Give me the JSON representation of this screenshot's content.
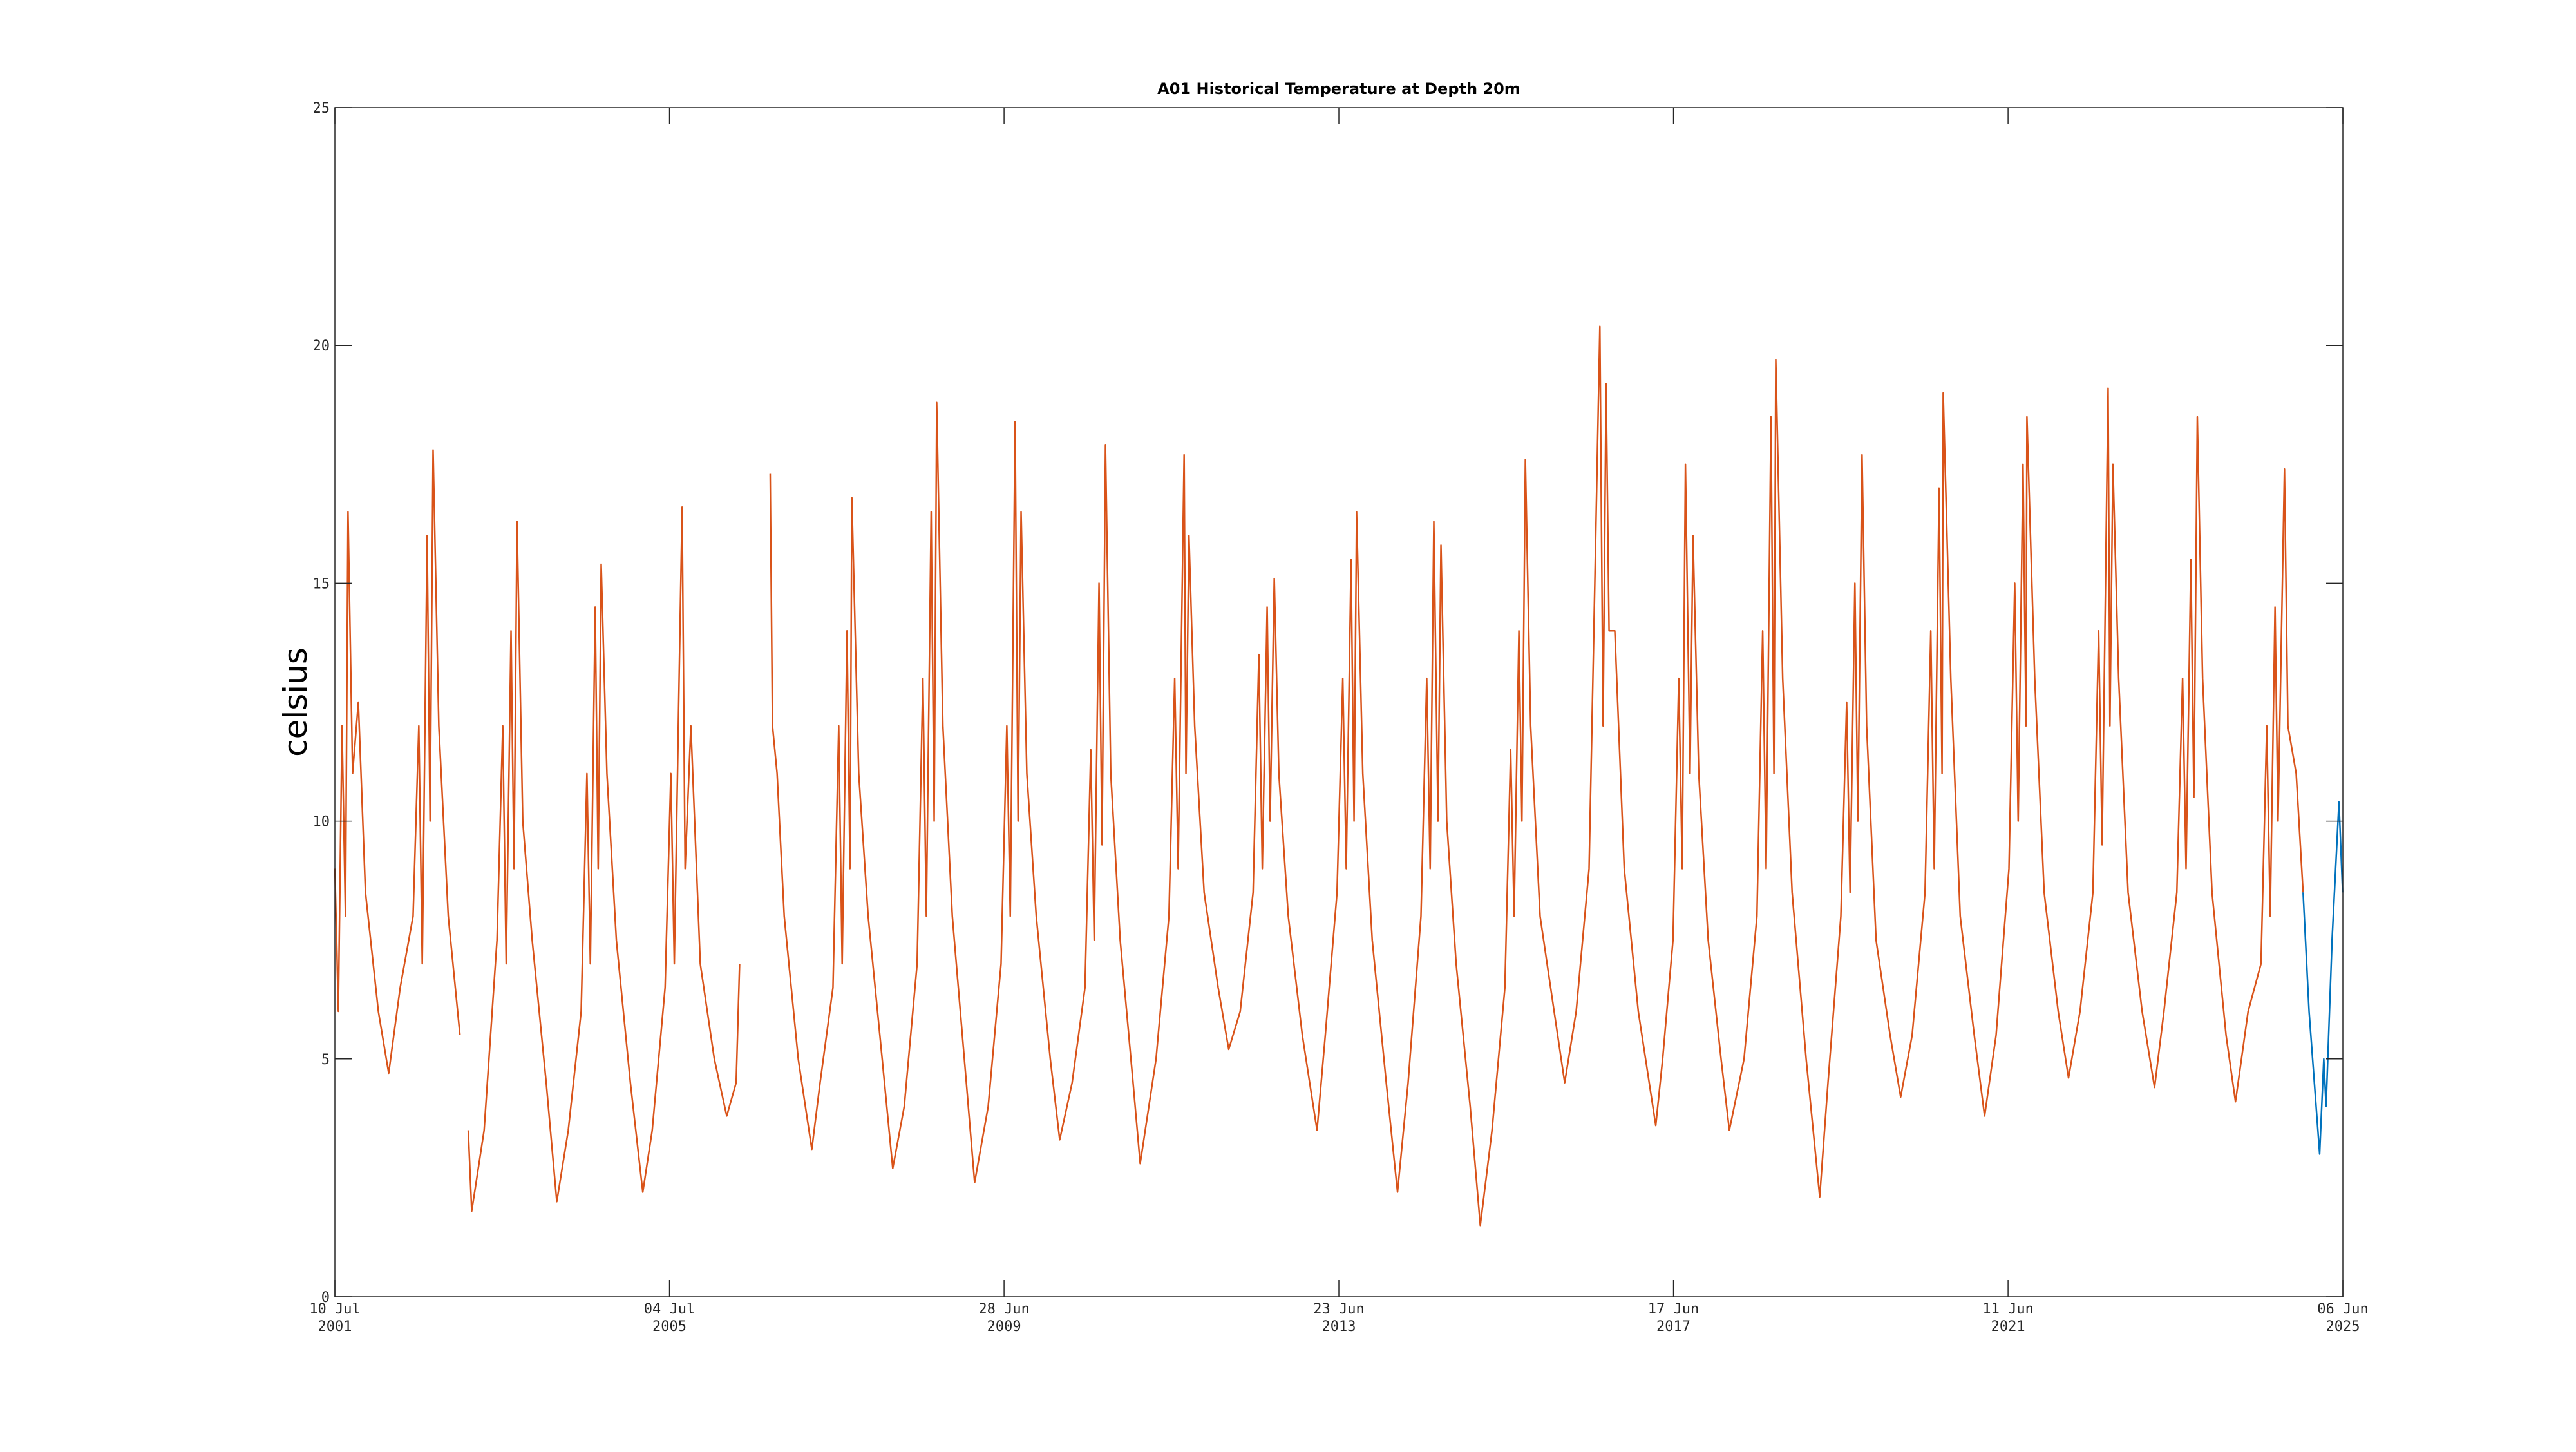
{
  "chart_data": {
    "type": "line",
    "title": "A01 Historical Temperature at Depth 20m",
    "y_label": "celsius",
    "xlim": [
      "2001-07-10",
      "2025-06-06"
    ],
    "xticks": [
      {
        "value": "2001-07-10",
        "label": "10 Jul 2001"
      },
      {
        "value": "2005-07-04",
        "label": "04 Jul 2005"
      },
      {
        "value": "2009-06-28",
        "label": "28 Jun 2009"
      },
      {
        "value": "2013-06-23",
        "label": "23 Jun 2013"
      },
      {
        "value": "2017-06-17",
        "label": "17 Jun 2017"
      },
      {
        "value": "2021-06-11",
        "label": "11 Jun 2021"
      },
      {
        "value": "2025-06-06",
        "label": "06 Jun 2025"
      }
    ],
    "ylim": [
      0,
      25
    ],
    "yticks": [
      0,
      5,
      10,
      15,
      20,
      25
    ],
    "grid": false,
    "series": [
      {
        "color": "#d95319",
        "x": [
          "2001-07-10",
          "2001-07-25",
          "2001-08-10",
          "2001-08-25",
          "2001-09-05",
          "2001-09-25",
          "2001-10-20",
          "2001-11-20",
          "2002-01-15",
          "2002-03-01",
          "2002-04-20",
          "2002-06-15",
          "2002-07-10",
          "2002-07-25",
          "2002-08-15",
          "2002-08-28",
          "2002-09-10",
          "2002-10-05",
          "2002-11-15",
          "2003-01-05",
          "2003-01-20",
          "2003-02-10",
          "2003-02-25",
          "2003-04-20",
          "2003-06-15",
          "2003-07-10",
          "2003-07-25",
          "2003-08-15",
          "2003-08-28",
          "2003-09-10",
          "2003-10-05",
          "2003-11-15",
          "2004-01-15",
          "2004-03-01",
          "2004-04-20",
          "2004-06-15",
          "2004-07-10",
          "2004-07-25",
          "2004-08-15",
          "2004-08-28",
          "2004-09-10",
          "2004-10-05",
          "2004-11-15",
          "2005-01-15",
          "2005-03-10",
          "2005-04-20",
          "2005-06-15",
          "2005-07-10",
          "2005-07-25",
          "2005-08-15",
          "2005-08-28",
          "2005-09-10",
          "2005-10-05",
          "2005-11-15",
          "2006-01-15",
          "2006-03-10",
          "2006-04-20",
          "2006-05-05",
          "2006-07-01",
          "2006-09-15",
          "2006-09-25",
          "2006-10-15",
          "2006-11-15",
          "2007-01-15",
          "2007-03-15",
          "2007-04-20",
          "2007-06-15",
          "2007-07-10",
          "2007-07-25",
          "2007-08-15",
          "2007-08-28",
          "2007-09-05",
          "2007-10-05",
          "2007-11-15",
          "2008-01-15",
          "2008-03-01",
          "2008-04-20",
          "2008-06-15",
          "2008-07-10",
          "2008-07-25",
          "2008-08-15",
          "2008-08-28",
          "2008-09-08",
          "2008-10-05",
          "2008-11-15",
          "2009-01-15",
          "2009-02-20",
          "2009-04-20",
          "2009-06-15",
          "2009-07-10",
          "2009-07-25",
          "2009-08-15",
          "2009-08-28",
          "2009-09-10",
          "2009-10-05",
          "2009-11-15",
          "2010-01-15",
          "2010-02-25",
          "2010-04-20",
          "2010-06-15",
          "2010-07-10",
          "2010-07-25",
          "2010-08-15",
          "2010-08-28",
          "2010-09-12",
          "2010-10-05",
          "2010-11-15",
          "2011-01-10",
          "2011-02-10",
          "2011-04-20",
          "2011-06-15",
          "2011-07-10",
          "2011-07-25",
          "2011-08-20",
          "2011-08-28",
          "2011-09-10",
          "2011-10-05",
          "2011-11-15",
          "2012-01-15",
          "2012-03-01",
          "2012-04-20",
          "2012-06-15",
          "2012-07-10",
          "2012-07-25",
          "2012-08-15",
          "2012-08-28",
          "2012-09-15",
          "2012-10-05",
          "2012-11-15",
          "2013-01-15",
          "2013-03-20",
          "2013-04-25",
          "2013-06-15",
          "2013-07-10",
          "2013-07-25",
          "2013-08-15",
          "2013-08-28",
          "2013-09-08",
          "2013-10-05",
          "2013-11-15",
          "2014-01-15",
          "2014-03-05",
          "2014-04-20",
          "2014-06-15",
          "2014-07-10",
          "2014-07-25",
          "2014-08-10",
          "2014-08-28",
          "2014-09-10",
          "2014-10-05",
          "2014-11-15",
          "2015-01-15",
          "2015-02-28",
          "2015-04-20",
          "2015-06-15",
          "2015-07-10",
          "2015-07-25",
          "2015-08-15",
          "2015-08-28",
          "2015-09-12",
          "2015-10-05",
          "2015-11-15",
          "2016-01-15",
          "2016-03-01",
          "2016-04-20",
          "2016-06-15",
          "2016-07-10",
          "2016-08-01",
          "2016-08-15",
          "2016-08-28",
          "2016-09-10",
          "2016-10-05",
          "2016-11-15",
          "2017-01-15",
          "2017-04-01",
          "2017-05-01",
          "2017-06-15",
          "2017-07-10",
          "2017-07-25",
          "2017-08-08",
          "2017-08-28",
          "2017-09-10",
          "2017-10-05",
          "2017-11-15",
          "2018-01-10",
          "2018-02-15",
          "2018-04-20",
          "2018-06-15",
          "2018-07-10",
          "2018-07-25",
          "2018-08-15",
          "2018-08-28",
          "2018-09-05",
          "2018-10-05",
          "2018-11-15",
          "2019-01-15",
          "2019-03-15",
          "2019-04-20",
          "2019-06-15",
          "2019-07-10",
          "2019-07-25",
          "2019-08-15",
          "2019-08-28",
          "2019-09-15",
          "2019-10-05",
          "2019-11-15",
          "2020-01-15",
          "2020-03-01",
          "2020-04-20",
          "2020-06-15",
          "2020-07-10",
          "2020-07-25",
          "2020-08-15",
          "2020-08-28",
          "2020-09-02",
          "2020-10-05",
          "2020-11-15",
          "2021-01-15",
          "2021-03-01",
          "2021-04-20",
          "2021-06-15",
          "2021-07-10",
          "2021-07-25",
          "2021-08-15",
          "2021-08-28",
          "2021-09-01",
          "2021-10-05",
          "2021-11-15",
          "2022-01-15",
          "2022-03-01",
          "2022-04-20",
          "2022-06-15",
          "2022-07-10",
          "2022-07-25",
          "2022-08-20",
          "2022-08-28",
          "2022-09-10",
          "2022-10-05",
          "2022-11-15",
          "2023-01-15",
          "2023-03-10",
          "2023-04-20",
          "2023-06-15",
          "2023-07-10",
          "2023-07-25",
          "2023-08-15",
          "2023-08-28",
          "2023-09-12",
          "2023-10-05",
          "2023-11-15",
          "2024-01-15",
          "2024-02-25",
          "2024-04-20",
          "2024-06-15",
          "2024-07-10",
          "2024-07-25",
          "2024-08-15",
          "2024-08-28",
          "2024-09-25",
          "2024-10-10",
          "2024-11-15",
          "2024-12-15"
        ],
        "values": [
          9,
          6,
          12,
          8,
          16.5,
          11,
          12.5,
          8.5,
          6,
          4.7,
          6.5,
          8,
          12,
          7,
          16,
          10,
          17.8,
          12,
          8,
          5.5,
          null,
          3.5,
          1.8,
          3.5,
          7.5,
          12,
          7,
          14,
          9,
          16.3,
          10,
          7.5,
          4.5,
          2.0,
          3.5,
          6,
          11,
          7,
          14.5,
          9,
          15.4,
          11,
          7.5,
          4.5,
          2.2,
          3.5,
          6.5,
          11,
          7,
          13,
          16.6,
          9,
          12,
          7,
          5,
          3.8,
          4.5,
          7,
          null,
          17.3,
          12,
          11,
          8,
          5,
          3.1,
          4.5,
          6.5,
          12,
          7,
          14,
          9,
          16.8,
          11,
          8,
          5,
          2.7,
          4,
          7,
          13,
          8,
          16.5,
          10,
          18.8,
          12,
          8,
          4.5,
          2.4,
          4,
          7,
          12,
          8,
          18.4,
          10,
          16.5,
          11,
          8,
          5,
          3.3,
          4.5,
          6.5,
          11.5,
          7.5,
          15,
          9.5,
          17.9,
          11,
          7.5,
          4.5,
          2.8,
          5,
          8,
          13,
          9,
          17.7,
          11,
          16,
          12,
          8.5,
          6.5,
          5.2,
          6,
          8.5,
          13.5,
          9,
          14.5,
          10,
          15.1,
          11,
          8,
          5.5,
          3.5,
          5.5,
          8.5,
          13,
          9,
          15.5,
          10,
          16.5,
          11,
          7.5,
          4.5,
          2.2,
          4.5,
          8,
          13,
          9,
          16.3,
          10,
          15.8,
          10,
          7,
          4,
          1.5,
          3.5,
          6.5,
          11.5,
          8,
          14,
          10,
          17.6,
          12,
          8,
          6,
          4.5,
          6,
          9,
          15,
          20.4,
          12,
          19.2,
          14,
          14,
          9,
          6,
          3.6,
          5,
          7.5,
          13,
          9,
          17.5,
          11,
          16,
          11,
          7.5,
          5,
          3.5,
          5,
          8,
          14,
          9,
          18.5,
          11,
          19.7,
          13,
          8.5,
          5,
          2.1,
          4.5,
          8,
          12.5,
          8.5,
          15,
          10,
          17.7,
          12,
          7.5,
          5.5,
          4.2,
          5.5,
          8.5,
          14,
          9,
          17,
          11,
          19.0,
          13,
          8,
          5.5,
          3.8,
          5.5,
          9,
          15,
          10,
          17.5,
          12,
          18.5,
          13,
          8.5,
          6,
          4.6,
          6,
          8.5,
          14,
          9.5,
          19.1,
          12,
          17.5,
          13,
          8.5,
          6,
          4.4,
          6,
          8.5,
          13,
          9,
          15.5,
          10.5,
          18.5,
          13,
          8.5,
          5.5,
          4.1,
          6,
          7,
          12,
          8,
          14.5,
          10,
          17.4,
          12,
          11,
          8.5
        ]
      },
      {
        "color": "#0072bd",
        "x": [
          "2024-12-15",
          "2025-01-10",
          "2025-02-25",
          "2025-03-15",
          "2025-03-25",
          "2025-04-20",
          "2025-05-20",
          "2025-06-05"
        ],
        "values": [
          8.5,
          6,
          3.0,
          5,
          4,
          7.5,
          10.4,
          8.5
        ]
      }
    ]
  }
}
